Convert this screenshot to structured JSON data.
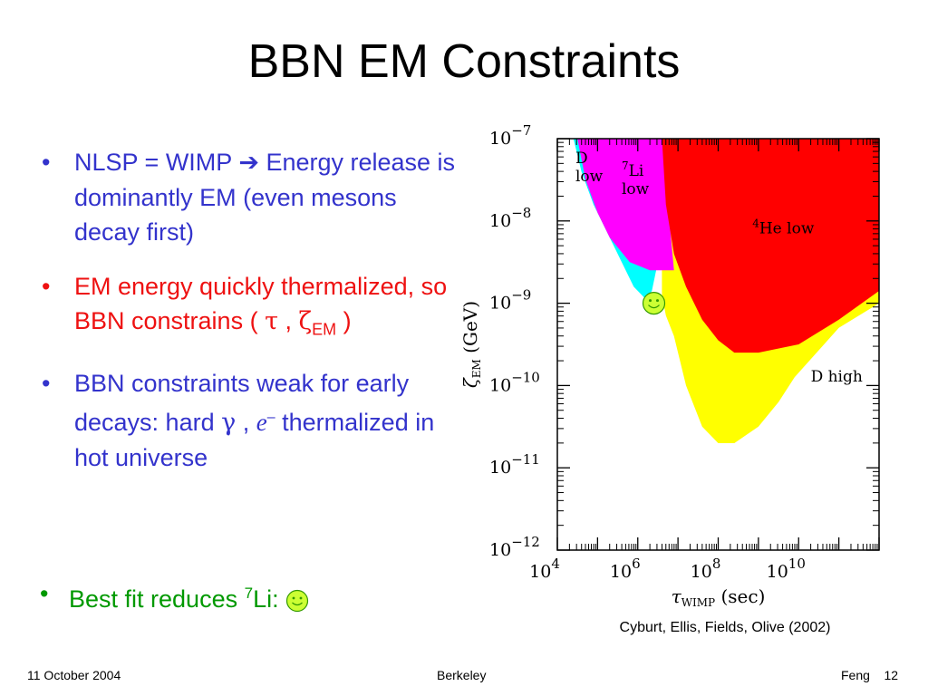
{
  "slide": {
    "title": "BBN EM Constraints",
    "bullets": [
      {
        "pre": "NLSP = WIMP ",
        "arrow": "➔",
        "post": " Energy release is dominantly EM (even mesons decay first)"
      },
      {
        "pre": "EM energy quickly thermalized, so BBN constrains ( ",
        "tau": "τ",
        "comma": " , ",
        "zeta": "ζ",
        "sub": "EM",
        "post": " )"
      },
      {
        "pre": "BBN constraints weak for early decays: hard ",
        "gamma": "γ",
        "comma": " , ",
        "e": "e",
        "sup": "–",
        "post": " thermalized in hot universe"
      }
    ],
    "best_fit": {
      "pre": "Best fit reduces ",
      "sup": "7",
      "post": "Li: "
    },
    "bullet_char": "•"
  },
  "chart_data": {
    "type": "area",
    "xlabel": {
      "tau": "τ",
      "sub": "WIMP",
      "rest": "(sec)"
    },
    "ylabel": {
      "zeta": "ζ",
      "sub": "EM",
      "rest": "(GeV)"
    },
    "x_log10_range": [
      4,
      12
    ],
    "y_log10_range": [
      -12,
      -7
    ],
    "x_tick_labels": [
      {
        "base": "10",
        "exp": "4",
        "log10": 4
      },
      {
        "base": "10",
        "exp": "6",
        "log10": 6
      },
      {
        "base": "10",
        "exp": "8",
        "log10": 8
      },
      {
        "base": "10",
        "exp": "10",
        "log10": 10
      }
    ],
    "y_tick_labels": [
      {
        "base": "10",
        "exp": "−7",
        "log10": -7
      },
      {
        "base": "10",
        "exp": "−8",
        "log10": -8
      },
      {
        "base": "10",
        "exp": "−9",
        "log10": -9
      },
      {
        "base": "10",
        "exp": "−10",
        "log10": -10
      },
      {
        "base": "10",
        "exp": "−11",
        "log10": -11
      },
      {
        "base": "10",
        "exp": "−12",
        "log10": -12
      }
    ],
    "regions": [
      {
        "color": "#ffff00",
        "points": [
          [
            6.6,
            -7.0
          ],
          [
            12,
            -7.0
          ],
          [
            12,
            -9.0
          ],
          [
            11.0,
            -9.3
          ],
          [
            9.9,
            -9.9
          ],
          [
            9.5,
            -10.2
          ],
          [
            9.0,
            -10.5
          ],
          [
            8.4,
            -10.7
          ],
          [
            8.0,
            -10.7
          ],
          [
            7.6,
            -10.5
          ],
          [
            7.2,
            -10.0
          ],
          [
            6.9,
            -9.4
          ],
          [
            6.7,
            -9.15
          ],
          [
            6.6,
            -8.9
          ]
        ]
      },
      {
        "color": "#00ffff",
        "points": [
          [
            4.4,
            -7.0
          ],
          [
            6.5,
            -7.0
          ],
          [
            6.5,
            -8.5
          ],
          [
            6.35,
            -8.85
          ],
          [
            6.2,
            -8.95
          ],
          [
            5.9,
            -8.8
          ],
          [
            5.4,
            -8.3
          ],
          [
            4.9,
            -7.8
          ],
          [
            4.6,
            -7.4
          ]
        ]
      },
      {
        "color": "#ff00ff",
        "points": [
          [
            4.5,
            -7.0
          ],
          [
            6.6,
            -7.0
          ],
          [
            6.9,
            -8.6
          ],
          [
            6.3,
            -8.6
          ],
          [
            5.8,
            -8.5
          ],
          [
            5.3,
            -8.2
          ],
          [
            5.0,
            -7.9
          ],
          [
            4.7,
            -7.5
          ]
        ]
      },
      {
        "color": "#ff0000",
        "points": [
          [
            6.6,
            -7.0
          ],
          [
            12,
            -7.0
          ],
          [
            12,
            -8.85
          ],
          [
            11.0,
            -9.2
          ],
          [
            10.0,
            -9.5
          ],
          [
            9.0,
            -9.6
          ],
          [
            8.4,
            -9.6
          ],
          [
            8.0,
            -9.45
          ],
          [
            7.6,
            -9.2
          ],
          [
            7.2,
            -8.8
          ],
          [
            6.9,
            -8.4
          ],
          [
            6.7,
            -7.8
          ]
        ]
      }
    ],
    "region_labels": [
      {
        "text": "D",
        "line2": "low",
        "x": 4.45,
        "y": -7.3
      },
      {
        "text": "Li",
        "sup": "7",
        "line2": "low",
        "x": 5.6,
        "y": -7.45
      },
      {
        "text": "He low",
        "sup": "4",
        "x": 8.85,
        "y": -8.15
      },
      {
        "text": "D high",
        "x": 10.3,
        "y": -9.95
      }
    ],
    "best_fit_point": {
      "x": 6.4,
      "y": -9.0
    }
  },
  "caption": "Cyburt, Ellis, Fields, Olive (2002)",
  "footer": {
    "date": "11 October 2004",
    "venue": "Berkeley",
    "author": "Feng",
    "page": "12"
  },
  "colors": {
    "blue": "#3333cc",
    "red": "#ee1111",
    "green": "#009900",
    "smiley": "#ccff33"
  }
}
